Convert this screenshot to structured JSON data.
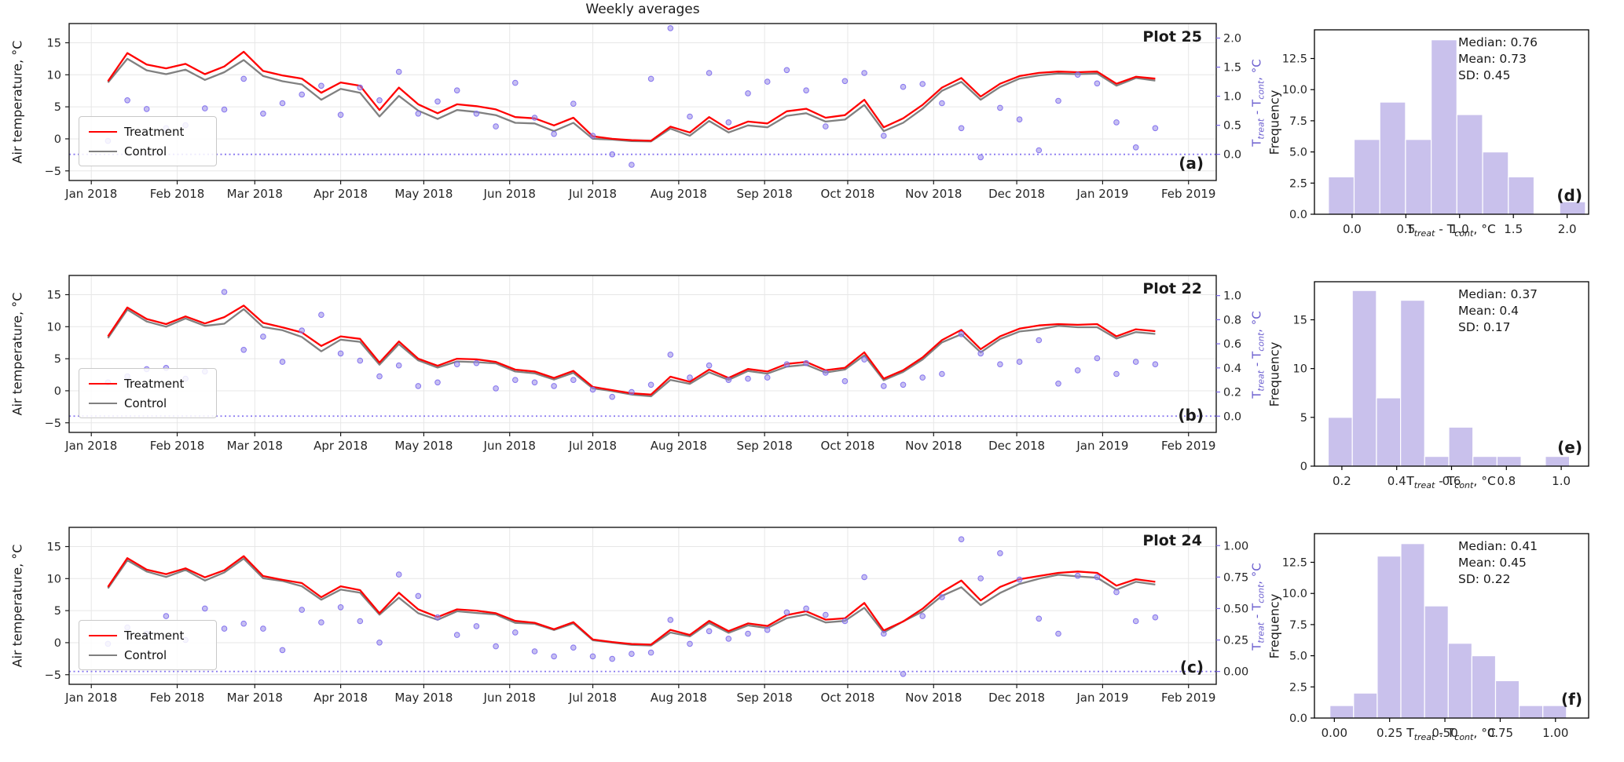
{
  "figure": {
    "title": "Weekly averages"
  },
  "colors": {
    "treatment": "#ff0000",
    "control": "#808080",
    "difference": "#7b68ee",
    "diff_fill": "#988ae6",
    "hist_fill": "#c9c1ec",
    "grid": "#e7e7e7",
    "axis": "#1a1a1a",
    "right_tick_text": "#6b5ecf"
  },
  "left_axis": {
    "label": "Air temperature, °C",
    "ticks": [
      -5,
      0,
      5,
      10,
      15
    ],
    "tick_labels": [
      "−5",
      "0",
      "5",
      "10",
      "15"
    ],
    "ylim": [
      -6.5,
      18.0
    ]
  },
  "right_axis_label": {
    "p1": "T",
    "s1": "treat",
    "p2": " - T",
    "s2": "cont",
    "p3": ", °C"
  },
  "x_axis": {
    "xlim_days": [
      -8,
      406
    ],
    "tick_days": [
      0,
      31,
      59,
      90,
      120,
      151,
      181,
      212,
      243,
      273,
      304,
      334,
      365,
      396
    ],
    "tick_labels": [
      "Jan 2018",
      "Feb 2018",
      "Mar 2018",
      "Apr 2018",
      "May 2018",
      "Jun 2018",
      "Jul 2018",
      "Aug 2018",
      "Sep 2018",
      "Oct 2018",
      "Nov 2018",
      "Dec 2018",
      "Jan 2019",
      "Feb 2019"
    ]
  },
  "weeks_days": [
    6,
    13,
    20,
    27,
    34,
    41,
    48,
    55,
    62,
    69,
    76,
    83,
    90,
    97,
    104,
    111,
    118,
    125,
    132,
    139,
    146,
    153,
    160,
    167,
    174,
    181,
    188,
    195,
    202,
    209,
    216,
    223,
    230,
    237,
    244,
    251,
    258,
    265,
    272,
    279,
    286,
    293,
    300,
    307,
    314,
    321,
    328,
    335,
    342,
    349,
    356,
    363,
    370,
    377,
    384
  ],
  "chart_data": [
    {
      "type": "line",
      "row": 0,
      "name": "Plot 25",
      "corner": "(a)",
      "xlabel": "",
      "ylabel": "Air temperature, °C",
      "right_ylim": [
        -0.45,
        2.25
      ],
      "right_ticks": [
        0.0,
        0.5,
        1.0,
        1.5,
        2.0
      ],
      "right_tick_labels": [
        "0.0",
        "0.5",
        "1.0",
        "1.5",
        "2.0"
      ],
      "series": [
        {
          "name": "Treatment",
          "values": [
            9.0,
            13.4,
            11.6,
            11.0,
            11.7,
            10.1,
            11.3,
            13.6,
            10.6,
            9.9,
            9.4,
            7.2,
            8.8,
            8.3,
            4.5,
            8.0,
            5.4,
            4.0,
            5.4,
            5.1,
            4.6,
            3.4,
            3.2,
            2.1,
            3.3,
            0.4,
            0.0,
            -0.2,
            -0.3,
            1.9,
            1.0,
            3.4,
            1.5,
            2.7,
            2.4,
            4.3,
            4.7,
            3.3,
            3.7,
            6.1,
            1.8,
            3.2,
            5.3,
            8.0,
            9.5,
            6.6,
            8.6,
            9.8,
            10.3,
            10.5,
            10.4,
            10.5,
            8.6,
            9.7,
            9.4
          ]
        },
        {
          "name": "Control",
          "values": [
            8.8,
            12.5,
            10.7,
            10.1,
            10.8,
            9.2,
            10.4,
            12.3,
            9.8,
            9.0,
            8.5,
            6.1,
            7.8,
            7.2,
            3.5,
            6.7,
            4.4,
            3.1,
            4.5,
            4.2,
            3.7,
            2.5,
            2.4,
            1.2,
            2.5,
            0.0,
            -0.1,
            -0.35,
            -0.4,
            1.6,
            0.5,
            2.8,
            1.0,
            2.1,
            1.8,
            3.6,
            4.0,
            2.7,
            3.0,
            5.3,
            1.2,
            2.5,
            4.7,
            7.5,
            8.9,
            6.1,
            8.1,
            9.4,
            9.9,
            10.2,
            10.1,
            10.2,
            8.3,
            9.5,
            9.1
          ]
        },
        {
          "name": "diff_scatter",
          "values": [
            0.23,
            0.93,
            0.78,
            0.45,
            0.5,
            0.79,
            0.77,
            1.3,
            0.7,
            0.88,
            1.03,
            1.18,
            0.68,
            1.15,
            0.93,
            1.42,
            0.7,
            0.91,
            1.1,
            0.7,
            0.48,
            1.23,
            0.63,
            0.35,
            0.87,
            0.32,
            0.0,
            -0.18,
            1.3,
            2.17,
            0.65,
            1.4,
            0.55,
            1.05,
            1.25,
            1.45,
            1.1,
            0.48,
            1.26,
            1.4,
            0.32,
            1.16,
            1.21,
            0.88,
            0.45,
            -0.05,
            0.8,
            0.6,
            0.07,
            0.92,
            1.37,
            1.22,
            0.55,
            0.12,
            0.45
          ]
        }
      ]
    },
    {
      "type": "histogram",
      "row": 0,
      "corner": "(d)",
      "ylabel": "Frequency",
      "stats_lines": [
        "Median: 0.76",
        "Mean: 0.73",
        "SD: 0.45"
      ],
      "bin_start": -0.22,
      "bin_width": 0.239,
      "counts": [
        3,
        6,
        9,
        6,
        14,
        8,
        5,
        3,
        0,
        1
      ],
      "xlim": [
        -0.35,
        2.2
      ],
      "xticks": [
        0.0,
        0.5,
        1.0,
        1.5,
        2.0
      ],
      "xtick_labels": [
        "0.0",
        "0.5",
        "1.0",
        "1.5",
        "2.0"
      ],
      "ylim": [
        0,
        14.8
      ],
      "yticks": [
        0,
        2.5,
        5,
        7.5,
        10,
        12.5
      ],
      "ytick_labels": [
        "0.0",
        "2.5",
        "5.0",
        "7.5",
        "10.0",
        "12.5"
      ]
    },
    {
      "type": "line",
      "row": 1,
      "name": "Plot 22",
      "corner": "(b)",
      "xlabel": "",
      "ylabel": "Air temperature, °C",
      "right_ylim": [
        -0.135,
        1.167
      ],
      "right_ticks": [
        0.0,
        0.2,
        0.4,
        0.6,
        0.8,
        1.0
      ],
      "right_tick_labels": [
        "0.0",
        "0.2",
        "0.4",
        "0.6",
        "0.8",
        "1.0"
      ],
      "series": [
        {
          "name": "Treatment",
          "values": [
            8.5,
            13.0,
            11.2,
            10.4,
            11.6,
            10.5,
            11.5,
            13.3,
            10.6,
            9.9,
            9.1,
            7.0,
            8.5,
            8.1,
            4.4,
            7.7,
            5.0,
            3.9,
            5.0,
            4.9,
            4.5,
            3.3,
            3.0,
            2.0,
            3.1,
            0.6,
            0.1,
            -0.4,
            -0.6,
            2.2,
            1.4,
            3.3,
            2.0,
            3.4,
            3.0,
            4.2,
            4.5,
            3.2,
            3.6,
            6.0,
            1.9,
            3.2,
            5.2,
            7.9,
            9.5,
            6.5,
            8.5,
            9.7,
            10.2,
            10.4,
            10.3,
            10.4,
            8.5,
            9.6,
            9.3
          ]
        },
        {
          "name": "Control",
          "values": [
            8.22,
            12.67,
            10.81,
            10.0,
            11.29,
            10.13,
            10.47,
            12.75,
            9.94,
            9.45,
            8.39,
            6.16,
            7.98,
            7.64,
            4.07,
            7.28,
            4.75,
            3.62,
            4.57,
            4.46,
            4.27,
            3.0,
            2.72,
            1.75,
            2.8,
            0.38,
            -0.06,
            -0.6,
            -0.86,
            1.69,
            1.08,
            2.88,
            1.7,
            3.09,
            2.68,
            3.77,
            4.06,
            2.84,
            3.31,
            5.53,
            1.65,
            2.94,
            4.88,
            7.55,
            8.82,
            5.98,
            8.07,
            9.25,
            9.57,
            10.13,
            9.92,
            9.92,
            8.15,
            9.15,
            8.87
          ]
        },
        {
          "name": "diff_scatter",
          "values": [
            0.28,
            0.33,
            0.39,
            0.4,
            0.31,
            0.37,
            1.03,
            0.55,
            0.66,
            0.45,
            0.71,
            0.84,
            0.52,
            0.46,
            0.33,
            0.42,
            0.25,
            0.28,
            0.43,
            0.44,
            0.23,
            0.3,
            0.28,
            0.25,
            0.3,
            0.22,
            0.16,
            0.2,
            0.26,
            0.51,
            0.32,
            0.42,
            0.3,
            0.31,
            0.32,
            0.43,
            0.44,
            0.36,
            0.29,
            0.47,
            0.25,
            0.26,
            0.32,
            0.35,
            0.68,
            0.52,
            0.43,
            0.45,
            0.63,
            0.27,
            0.38,
            0.48,
            0.35,
            0.45,
            0.43
          ]
        }
      ]
    },
    {
      "type": "histogram",
      "row": 1,
      "corner": "(e)",
      "ylabel": "Frequency",
      "stats_lines": [
        "Median: 0.37",
        "Mean: 0.4",
        "SD: 0.17"
      ],
      "bin_start": 0.15,
      "bin_width": 0.088,
      "counts": [
        5,
        18,
        7,
        17,
        1,
        4,
        1,
        1,
        0,
        1
      ],
      "xlim": [
        0.1,
        1.1
      ],
      "xticks": [
        0.2,
        0.4,
        0.6,
        0.8,
        1.0
      ],
      "xtick_labels": [
        "0.2",
        "0.4",
        "0.6",
        "0.8",
        "1.0"
      ],
      "ylim": [
        0,
        18.9
      ],
      "yticks": [
        0,
        5,
        10,
        15
      ],
      "ytick_labels": [
        "0",
        "5",
        "10",
        "15"
      ]
    },
    {
      "type": "line",
      "row": 2,
      "name": "Plot 24",
      "corner": "(c)",
      "xlabel": "",
      "ylabel": "Air temperature, °C",
      "right_ylim": [
        -0.102,
        1.145
      ],
      "right_ticks": [
        0.0,
        0.25,
        0.5,
        0.75,
        1.0
      ],
      "right_tick_labels": [
        "0.00",
        "0.25",
        "0.50",
        "0.75",
        "1.00"
      ],
      "series": [
        {
          "name": "Treatment",
          "values": [
            8.7,
            13.2,
            11.4,
            10.7,
            11.6,
            10.2,
            11.3,
            13.5,
            10.4,
            9.8,
            9.3,
            7.1,
            8.8,
            8.2,
            4.6,
            7.8,
            5.2,
            4.0,
            5.2,
            5.0,
            4.6,
            3.4,
            3.1,
            2.1,
            3.2,
            0.5,
            0.1,
            -0.2,
            -0.3,
            2.0,
            1.2,
            3.4,
            1.8,
            3.0,
            2.6,
            4.3,
            4.9,
            3.6,
            3.8,
            6.2,
            1.9,
            3.3,
            5.3,
            7.9,
            9.7,
            6.6,
            8.7,
            9.9,
            10.4,
            10.9,
            11.1,
            10.9,
            8.9,
            9.9,
            9.5
          ]
        },
        {
          "name": "Control",
          "values": [
            8.48,
            12.85,
            11.1,
            10.26,
            11.35,
            9.7,
            10.96,
            13.12,
            10.06,
            9.63,
            8.81,
            6.71,
            8.29,
            7.8,
            4.37,
            7.03,
            4.6,
            3.57,
            4.91,
            4.64,
            4.4,
            3.09,
            2.94,
            1.98,
            3.01,
            0.38,
            0.0,
            -0.34,
            -0.45,
            1.59,
            0.98,
            3.08,
            1.54,
            2.7,
            2.27,
            3.83,
            4.4,
            3.15,
            3.4,
            5.45,
            1.6,
            3.32,
            4.86,
            7.31,
            8.65,
            5.86,
            7.76,
            9.17,
            9.98,
            10.6,
            10.34,
            10.15,
            8.27,
            9.5,
            9.07
          ]
        },
        {
          "name": "diff_scatter",
          "values": [
            0.22,
            0.35,
            0.3,
            0.44,
            0.25,
            0.5,
            0.34,
            0.38,
            0.34,
            0.17,
            0.49,
            0.39,
            0.51,
            0.4,
            0.23,
            0.77,
            0.6,
            0.43,
            0.29,
            0.36,
            0.2,
            0.31,
            0.16,
            0.12,
            0.19,
            0.12,
            0.1,
            0.14,
            0.15,
            0.41,
            0.22,
            0.32,
            0.26,
            0.3,
            0.33,
            0.47,
            0.5,
            0.45,
            0.4,
            0.75,
            0.3,
            -0.02,
            0.44,
            0.59,
            1.05,
            0.74,
            0.94,
            0.73,
            0.42,
            0.3,
            0.76,
            0.75,
            0.63,
            0.4,
            0.43
          ]
        }
      ]
    },
    {
      "type": "histogram",
      "row": 2,
      "corner": "(f)",
      "ylabel": "Frequency",
      "stats_lines": [
        "Median: 0.41",
        "Mean: 0.45",
        "SD: 0.22"
      ],
      "bin_start": -0.02,
      "bin_width": 0.107,
      "counts": [
        1,
        2,
        13,
        14,
        9,
        6,
        5,
        3,
        1,
        1
      ],
      "xlim": [
        -0.09,
        1.15
      ],
      "xticks": [
        0.0,
        0.25,
        0.5,
        0.75,
        1.0
      ],
      "xtick_labels": [
        "0.00",
        "0.25",
        "0.50",
        "0.75",
        "1.00"
      ],
      "ylim": [
        0,
        14.8
      ],
      "yticks": [
        0,
        2.5,
        5,
        7.5,
        10,
        12.5
      ],
      "ytick_labels": [
        "0.0",
        "2.5",
        "5.0",
        "7.5",
        "10.0",
        "12.5"
      ]
    }
  ]
}
